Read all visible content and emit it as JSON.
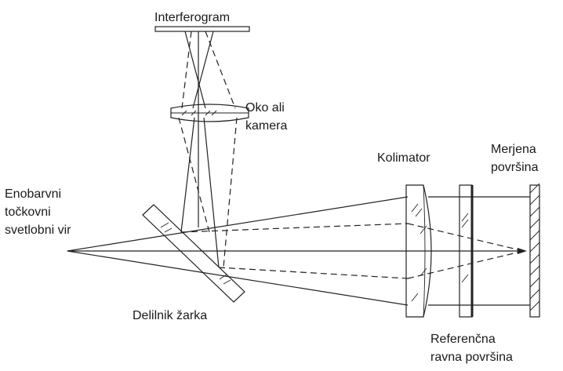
{
  "labels": {
    "interferogram": "Interferogram",
    "eye_or_camera": [
      "Oko ali",
      "kamera"
    ],
    "collimator": "Kolimator",
    "measured_surface": [
      "Merjena",
      "površina"
    ],
    "light_source": [
      "Enobarvni",
      "točkovni",
      "svetlobni vir"
    ],
    "beam_splitter": "Delilnik žarka",
    "reference_surface": [
      "Referenčna",
      "ravna površina"
    ]
  },
  "colors": {
    "line": "#222222",
    "text": "#1a1a1a",
    "background": "#ffffff"
  }
}
